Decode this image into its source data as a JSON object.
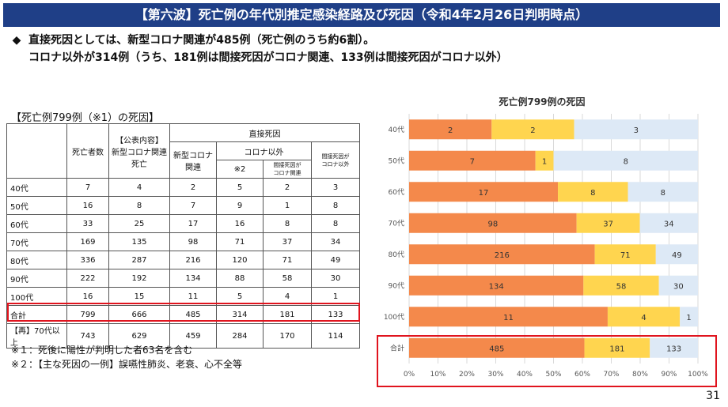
{
  "banner": {
    "title": "【第六波】死亡例の年代別推定感染経路及び死因（令和4年2月26日判明時点）"
  },
  "bullets": {
    "symbol": "◆",
    "line1": "直接死因としては、新型コロナ関連が485例（死亡例のうち約6割）。",
    "line2": "コロナ以外が314例（うち、181例は間接死因がコロナ関連、133例は間接死因がコロナ以外）"
  },
  "table": {
    "title": "【死亡例799例（※1）の死因】",
    "headers": {
      "deaths": "死亡者数",
      "public_line1": "【公表内容】",
      "public_line2": "新型コロナ関連",
      "public_line3": "死亡",
      "direct": "直接死因",
      "direct_covid_line1": "新型コロナ",
      "direct_covid_line2": "関連",
      "non_covid_line1": "コロナ以外",
      "non_covid_line2": "※2",
      "indirect_covid_line1": "間接死因が",
      "indirect_covid_line2": "コロナ関連",
      "indirect_other_line1": "間接死因が",
      "indirect_other_line2": "コロナ以外"
    },
    "rows": [
      {
        "label": "40代",
        "cells": [
          "7",
          "4",
          "2",
          "5",
          "2",
          "3"
        ]
      },
      {
        "label": "50代",
        "cells": [
          "16",
          "8",
          "7",
          "9",
          "1",
          "8"
        ]
      },
      {
        "label": "60代",
        "cells": [
          "33",
          "25",
          "17",
          "16",
          "8",
          "8"
        ]
      },
      {
        "label": "70代",
        "cells": [
          "169",
          "135",
          "98",
          "71",
          "37",
          "34"
        ]
      },
      {
        "label": "80代",
        "cells": [
          "336",
          "287",
          "216",
          "120",
          "71",
          "49"
        ]
      },
      {
        "label": "90代",
        "cells": [
          "222",
          "192",
          "134",
          "88",
          "58",
          "30"
        ]
      },
      {
        "label": "100代",
        "cells": [
          "16",
          "15",
          "11",
          "5",
          "4",
          "1"
        ]
      },
      {
        "label": "合計",
        "cells": [
          "799",
          "666",
          "485",
          "314",
          "181",
          "133"
        ]
      },
      {
        "label": "【再】70代以上",
        "cells": [
          "743",
          "629",
          "459",
          "284",
          "170",
          "114"
        ]
      }
    ]
  },
  "notes": {
    "note1": "※１：死後に陽性が判明した者63名を含む",
    "note2": "※２：【主な死因の一例】誤嚥性肺炎、老衰、心不全等"
  },
  "chart_data": {
    "type": "bar",
    "orientation": "horizontal",
    "stacking": "percent",
    "title": "死亡例799例の死因",
    "categories": [
      "40代",
      "50代",
      "60代",
      "70代",
      "80代",
      "90代",
      "100代",
      "合計"
    ],
    "series": [
      {
        "values": [
          2,
          7,
          17,
          98,
          216,
          134,
          11,
          485
        ],
        "color": "#f4894b"
      },
      {
        "values": [
          2,
          1,
          8,
          37,
          71,
          58,
          4,
          181
        ],
        "color": "#ffd54f"
      },
      {
        "values": [
          3,
          8,
          8,
          34,
          49,
          30,
          1,
          133
        ],
        "color": "#dde9f6"
      }
    ],
    "xticks": [
      "0%",
      "10%",
      "20%",
      "30%",
      "40%",
      "50%",
      "60%",
      "70%",
      "80%",
      "90%",
      "100%"
    ],
    "xlim": [
      0,
      100
    ],
    "grid": true,
    "legend": "none"
  },
  "page": {
    "number": "31"
  }
}
